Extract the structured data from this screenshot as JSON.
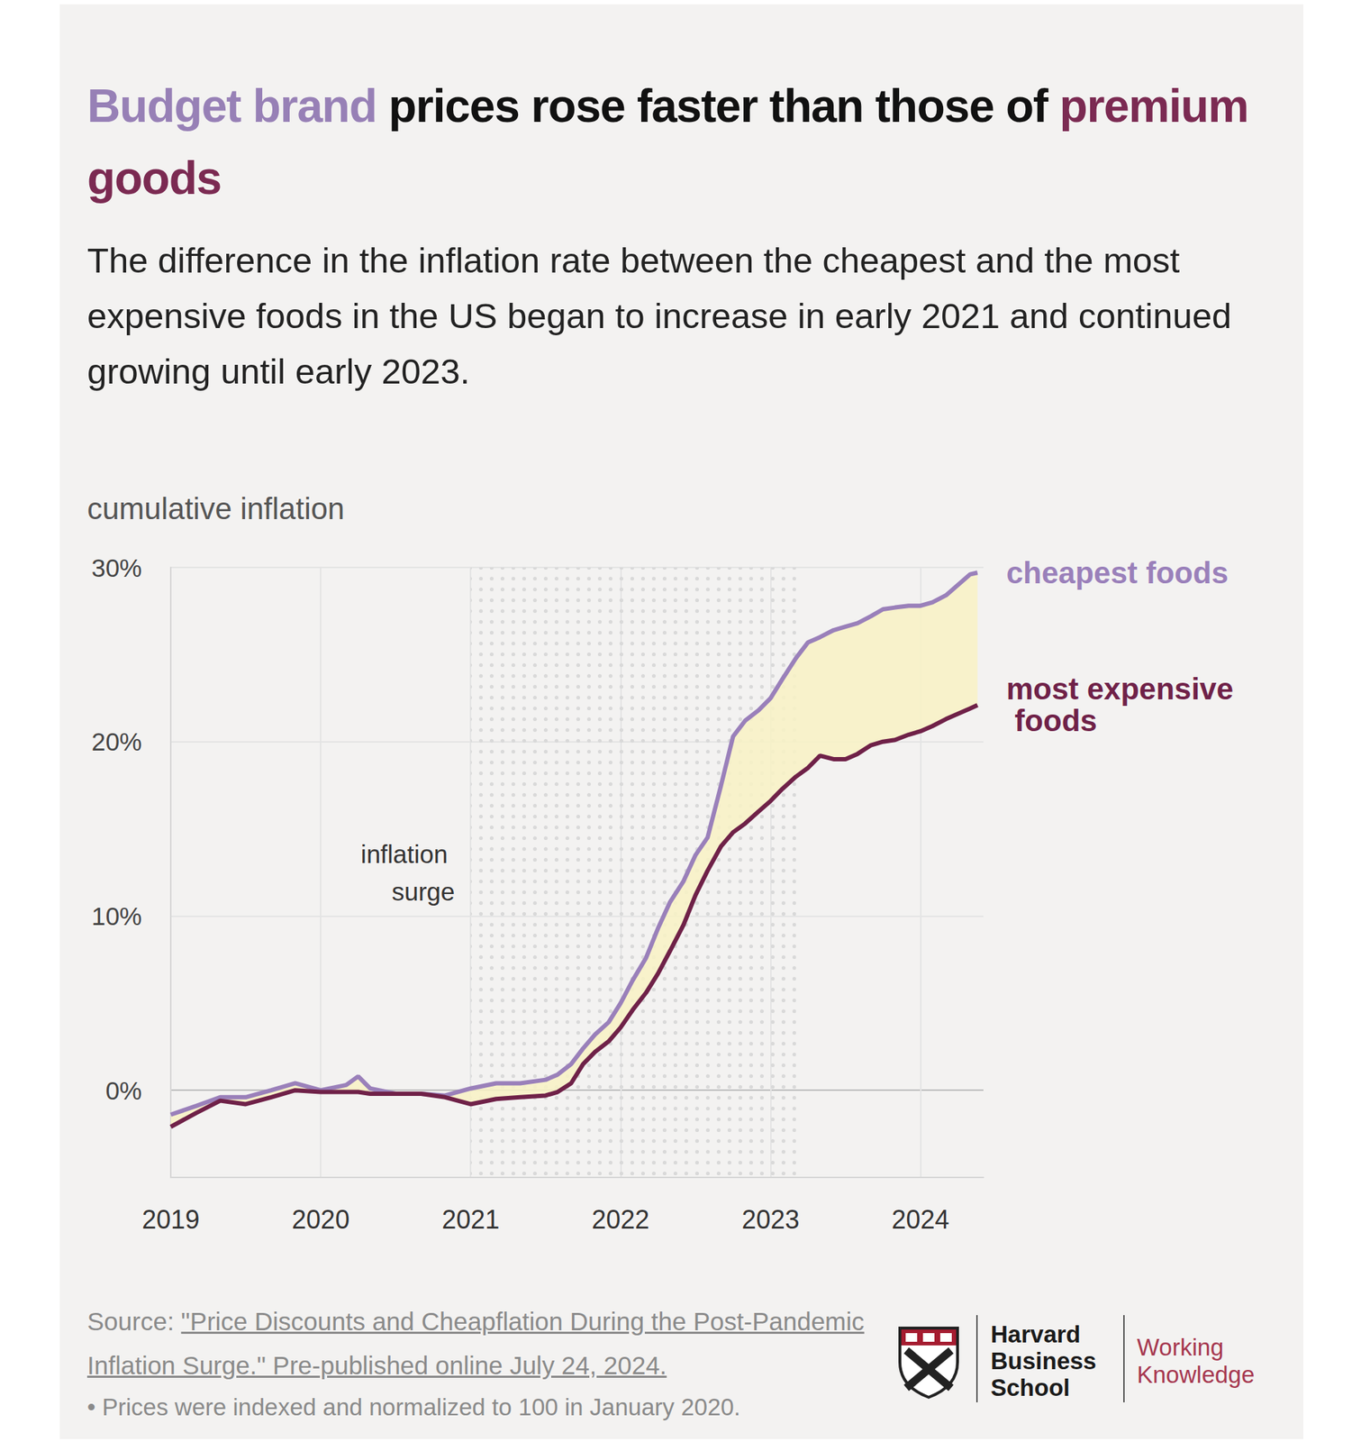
{
  "chart_data": {
    "type": "line",
    "title": [
      {
        "text": "Budget brand",
        "color": "#9780b6"
      },
      {
        "text": " prices rose faster than those of "
      },
      {
        "text": "premium goods",
        "color": "#7b2a52"
      }
    ],
    "subtitle": "The difference in the inflation rate between the cheapest and the most expensive foods in the US began to increase in early 2021 and continued growing until early 2023.",
    "y_label": "cumulative inflation",
    "x": [
      2019.0,
      2019.17,
      2019.33,
      2019.5,
      2019.67,
      2019.83,
      2020.0,
      2020.17,
      2020.25,
      2020.33,
      2020.5,
      2020.67,
      2020.83,
      2021.0,
      2021.17,
      2021.33,
      2021.5,
      2021.58,
      2021.67,
      2021.75,
      2021.83,
      2021.92,
      2022.0,
      2022.08,
      2022.17,
      2022.25,
      2022.33,
      2022.42,
      2022.5,
      2022.58,
      2022.67,
      2022.75,
      2022.83,
      2022.92,
      2023.0,
      2023.08,
      2023.17,
      2023.25,
      2023.33,
      2023.42,
      2023.5,
      2023.58,
      2023.67,
      2023.75,
      2023.83,
      2023.92,
      2024.0,
      2024.08,
      2024.17,
      2024.25,
      2024.33,
      2024.38
    ],
    "series": [
      {
        "name": "cheapest foods",
        "color": "#9a80ba",
        "values": [
          -1.4,
          -0.9,
          -0.4,
          -0.4,
          0.0,
          0.4,
          0.0,
          0.3,
          0.8,
          0.1,
          -0.2,
          -0.2,
          -0.3,
          0.1,
          0.4,
          0.4,
          0.6,
          0.9,
          1.5,
          2.4,
          3.2,
          3.9,
          5.0,
          6.3,
          7.6,
          9.3,
          10.8,
          12.0,
          13.5,
          14.5,
          17.5,
          20.3,
          21.2,
          21.8,
          22.5,
          23.6,
          24.8,
          25.7,
          26.0,
          26.4,
          26.6,
          26.8,
          27.2,
          27.6,
          27.7,
          27.8,
          27.8,
          28.0,
          28.4,
          29.0,
          29.6,
          29.7
        ]
      },
      {
        "name": "most expensive foods",
        "color": "#6f2148",
        "values": [
          -2.1,
          -1.3,
          -0.6,
          -0.8,
          -0.4,
          0.0,
          -0.1,
          -0.1,
          -0.1,
          -0.2,
          -0.2,
          -0.2,
          -0.4,
          -0.8,
          -0.5,
          -0.4,
          -0.3,
          -0.1,
          0.4,
          1.5,
          2.2,
          2.8,
          3.6,
          4.6,
          5.6,
          6.7,
          8.0,
          9.5,
          11.2,
          12.6,
          14.0,
          14.8,
          15.3,
          16.0,
          16.6,
          17.3,
          18.0,
          18.5,
          19.2,
          19.0,
          19.0,
          19.3,
          19.8,
          20.0,
          20.1,
          20.4,
          20.6,
          20.9,
          21.3,
          21.6,
          21.9,
          22.1
        ]
      }
    ],
    "xlim": [
      2019,
      2024.42
    ],
    "xticks": [
      2019,
      2020,
      2021,
      2022,
      2023,
      2024
    ],
    "ylim": [
      -5,
      30
    ],
    "yticks": [
      {
        "value": 0,
        "label": "0%"
      },
      {
        "value": 10,
        "label": "10%"
      },
      {
        "value": 20,
        "label": "20%"
      },
      {
        "value": 30,
        "label": "30%"
      }
    ],
    "grid": true,
    "annotations": [
      {
        "text": "inflation surge",
        "x_start": 2021,
        "x_end": 2023.17
      }
    ],
    "source": {
      "label": "Source:",
      "text": "\"Price Discounts and Cheapflation During the Post-Pandemic Inflation Surge.\" Pre-published online July 24, 2024."
    },
    "note": "• Prices were indexed and normalized to 100 in January 2020.",
    "branding": {
      "institution": "Harvard Business School",
      "publication": "Working Knowledge"
    }
  }
}
